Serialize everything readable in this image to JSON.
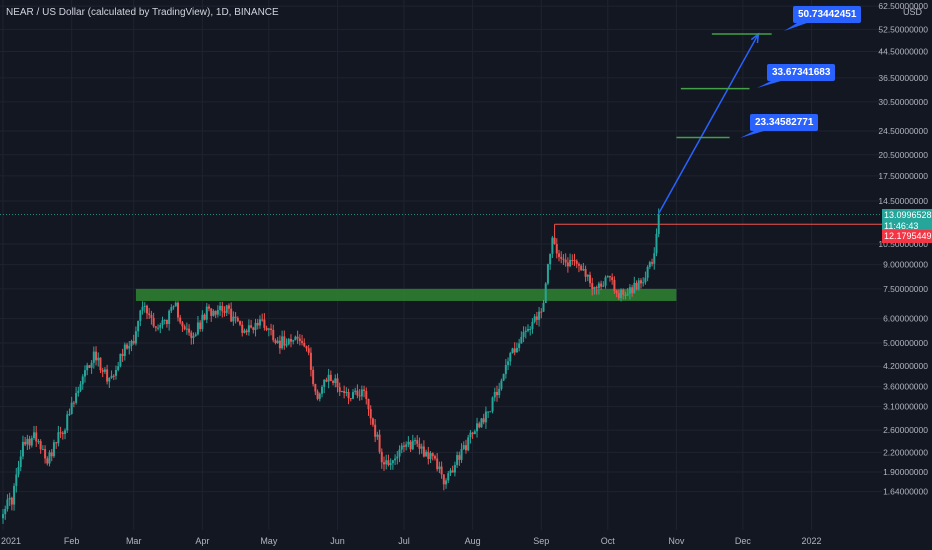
{
  "header": {
    "title": "NEAR / US Dollar (calculated by TradingView), 1D, BINANCE",
    "currency": "USD"
  },
  "colors": {
    "background": "#131722",
    "grid": "#1f2330",
    "up_candle": "#26a69a",
    "down_candle": "#ef5350",
    "support_zone": "#2e7d32",
    "target_line": "#43a047",
    "projection_arrow": "#2962ff",
    "callout": "#2962ff",
    "resistance_line": "#ef5350",
    "price_badge_up": "#26a69a",
    "price_badge_down": "#f23645"
  },
  "price_axis": {
    "ticks": [
      "62.50000000",
      "52.50000000",
      "44.50000000",
      "36.50000000",
      "30.50000000",
      "24.50000000",
      "20.50000000",
      "17.50000000",
      "14.50000000",
      "10.50000000",
      "9.00000000",
      "7.50000000",
      "6.00000000",
      "5.00000000",
      "4.20000000",
      "3.60000000",
      "3.10000000",
      "2.60000000",
      "2.20000000",
      "1.90000000",
      "1.64000000"
    ],
    "current_price": "13.09965282",
    "countdown": "11:46:43",
    "resistance_price": "12.17954491"
  },
  "time_axis": {
    "ticks": [
      "2021",
      "Feb",
      "Mar",
      "Apr",
      "May",
      "Jun",
      "Jul",
      "Aug",
      "Sep",
      "Oct",
      "Nov",
      "Dec",
      "2022"
    ]
  },
  "annotations": {
    "targets": [
      "23.34582771",
      "33.67341683",
      "50.73442451"
    ]
  },
  "chart_data": {
    "type": "candlestick",
    "title": "NEAR / US Dollar (calculated by TradingView), 1D, BINANCE",
    "scale": "log",
    "ylim": [
      1.45,
      64
    ],
    "x_range": [
      "2021-01-01",
      "2022-01-31"
    ],
    "grid": true,
    "anchors": [
      [
        "2021-01-01",
        1.45
      ],
      [
        "2021-01-05",
        1.55
      ],
      [
        "2021-01-10",
        2.3
      ],
      [
        "2021-01-16",
        2.5
      ],
      [
        "2021-01-21",
        2.1
      ],
      [
        "2021-01-29",
        2.7
      ],
      [
        "2021-02-06",
        3.8
      ],
      [
        "2021-02-11",
        4.6
      ],
      [
        "2021-02-18",
        3.8
      ],
      [
        "2021-02-24",
        4.7
      ],
      [
        "2021-03-01",
        5.2
      ],
      [
        "2021-03-05",
        6.6
      ],
      [
        "2021-03-12",
        5.6
      ],
      [
        "2021-03-20",
        6.5
      ],
      [
        "2021-03-27",
        5.1
      ],
      [
        "2021-04-03",
        6.3
      ],
      [
        "2021-04-10",
        6.6
      ],
      [
        "2021-04-20",
        5.5
      ],
      [
        "2021-04-28",
        5.9
      ],
      [
        "2021-05-06",
        5.0
      ],
      [
        "2021-05-12",
        5.3
      ],
      [
        "2021-05-18",
        4.8
      ],
      [
        "2021-05-23",
        3.3
      ],
      [
        "2021-05-28",
        3.9
      ],
      [
        "2021-06-05",
        3.4
      ],
      [
        "2021-06-13",
        3.5
      ],
      [
        "2021-06-22",
        2.0
      ],
      [
        "2021-06-29",
        2.2
      ],
      [
        "2021-07-06",
        2.4
      ],
      [
        "2021-07-16",
        2.0
      ],
      [
        "2021-07-20",
        1.75
      ],
      [
        "2021-07-26",
        2.15
      ],
      [
        "2021-08-02",
        2.6
      ],
      [
        "2021-08-10",
        3.2
      ],
      [
        "2021-08-18",
        4.6
      ],
      [
        "2021-08-25",
        5.4
      ],
      [
        "2021-09-01",
        6.2
      ],
      [
        "2021-09-06",
        10.8
      ],
      [
        "2021-09-12",
        9.2
      ],
      [
        "2021-09-18",
        9.3
      ],
      [
        "2021-09-24",
        7.4
      ],
      [
        "2021-10-01",
        8.2
      ],
      [
        "2021-10-06",
        7.2
      ],
      [
        "2021-10-14",
        7.6
      ],
      [
        "2021-10-19",
        8.7
      ],
      [
        "2021-10-22",
        9.4
      ],
      [
        "2021-10-24",
        13.1
      ]
    ],
    "support_zone": {
      "low": 6.85,
      "high": 7.5,
      "from": "2021-03-02",
      "to": "2021-11-01"
    },
    "resistance_level": {
      "price": 12.18,
      "from": "2021-09-07"
    },
    "projection": {
      "from": [
        "2021-10-24",
        13.2
      ],
      "to": [
        "2021-12-08",
        50.7
      ]
    },
    "targets": [
      {
        "price": 23.35,
        "from": "2021-11-01",
        "to": "2021-11-25"
      },
      {
        "price": 33.67,
        "from": "2021-11-03",
        "to": "2021-12-04"
      },
      {
        "price": 50.73,
        "from": "2021-11-17",
        "to": "2021-12-14"
      }
    ]
  }
}
